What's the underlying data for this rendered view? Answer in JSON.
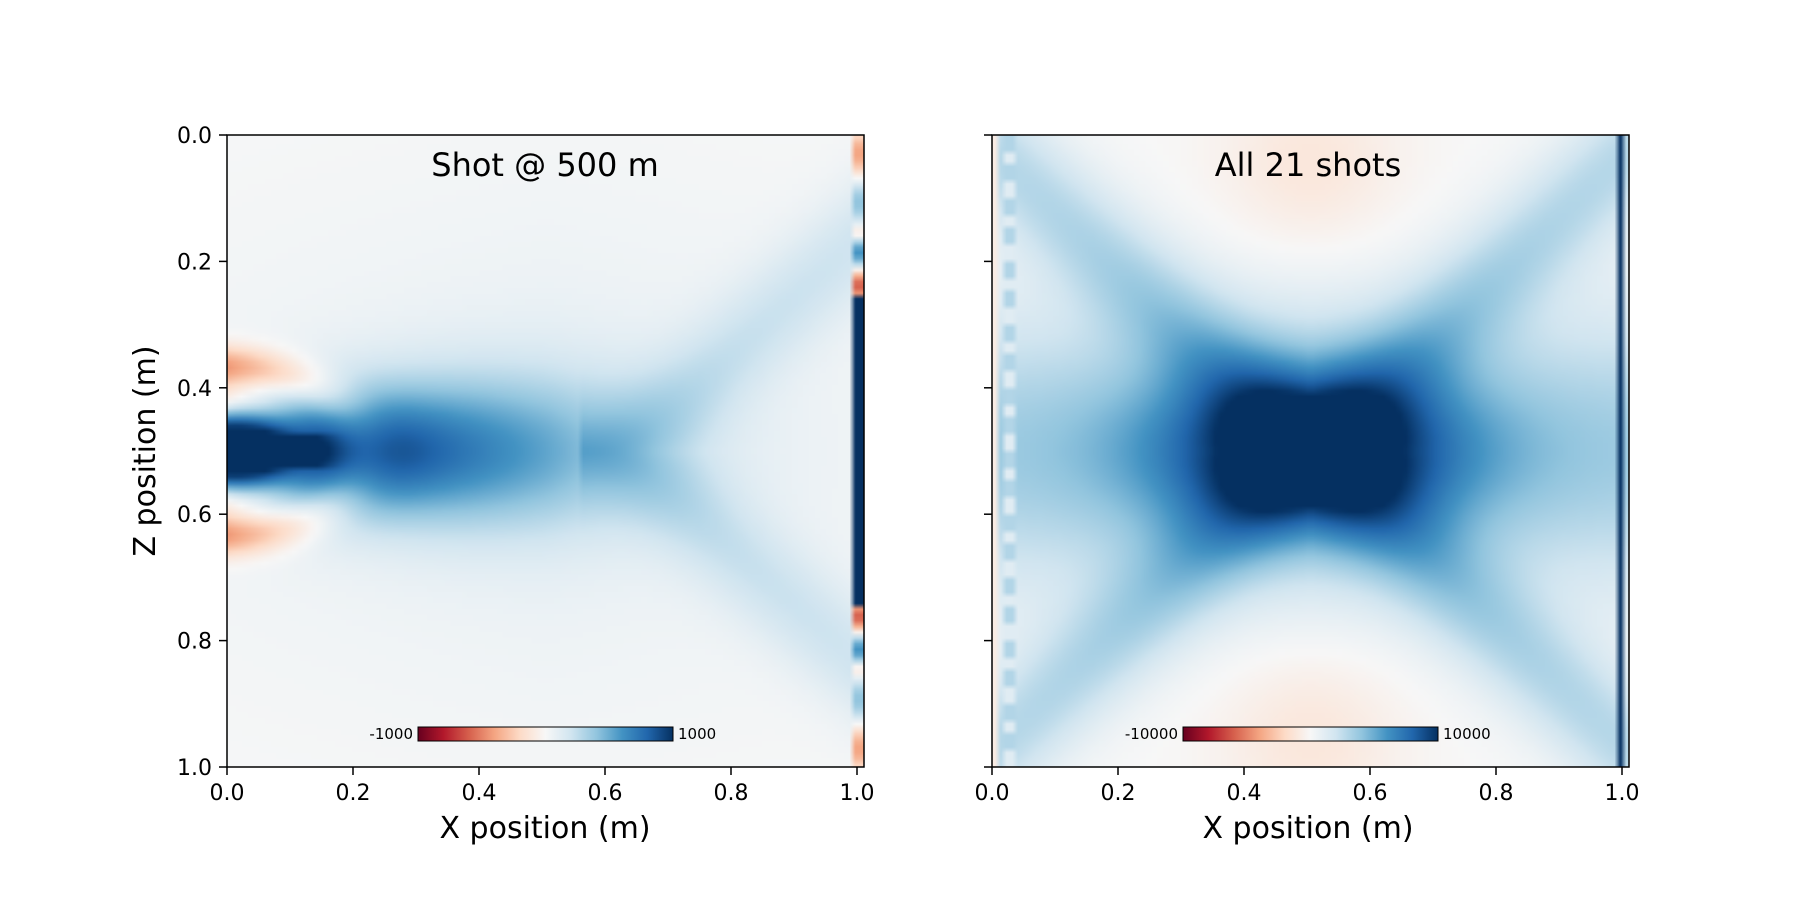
{
  "chart_data": [
    {
      "type": "heatmap",
      "title": "Shot @ 500 m",
      "xlabel": "X position (m)",
      "ylabel": "Z position (m)",
      "xlim": [
        0.0,
        1.0
      ],
      "ylim": [
        1.0,
        0.0
      ],
      "xticks": [
        "0.0",
        "0.2",
        "0.4",
        "0.6",
        "0.8",
        "1.0"
      ],
      "yticks": [
        "0.0",
        "0.2",
        "0.4",
        "0.6",
        "0.8",
        "1.0"
      ],
      "colormap": "RdBu",
      "colorbar": {
        "min": -1000,
        "max": 1000,
        "min_label": "-1000",
        "max_label": "1000",
        "placement": "bottom-center, inside"
      },
      "source": {
        "x": 0.0,
        "z": 0.5
      },
      "receiver_line_x": 0.99,
      "features": "strong positive (blue) lobe from source along z=0.5 decaying to x~0.6, negative (red) side lobes near source, faint diverging arms, oscillating receiver column at x~0.99"
    },
    {
      "type": "heatmap",
      "title": "All 21 shots",
      "xlabel": "X position (m)",
      "ylabel": "",
      "xlim": [
        0.0,
        1.0
      ],
      "ylim": [
        1.0,
        0.0
      ],
      "xticks": [
        "0.0",
        "0.2",
        "0.4",
        "0.6",
        "0.8",
        "1.0"
      ],
      "yticks": [],
      "colormap": "RdBu",
      "colorbar": {
        "min": -10000,
        "max": 10000,
        "min_label": "-10000",
        "max_label": "10000",
        "placement": "bottom-center, inside"
      },
      "sources": {
        "count": 21,
        "x": 0.02,
        "z_range": [
          0.0,
          1.0
        ]
      },
      "receiver_line_x": 0.985,
      "features": "symmetric hourglass of positive (blue) values peaking near center (0.5, 0.5), faint red regions near top and bottom center, strong blue receiver column"
    }
  ],
  "colors": {
    "rdbu": [
      "#67001f",
      "#b2182b",
      "#d6604d",
      "#f4a582",
      "#fddbc7",
      "#f7f7f7",
      "#d1e5f0",
      "#92c5de",
      "#4393c3",
      "#2166ac",
      "#053061"
    ]
  }
}
